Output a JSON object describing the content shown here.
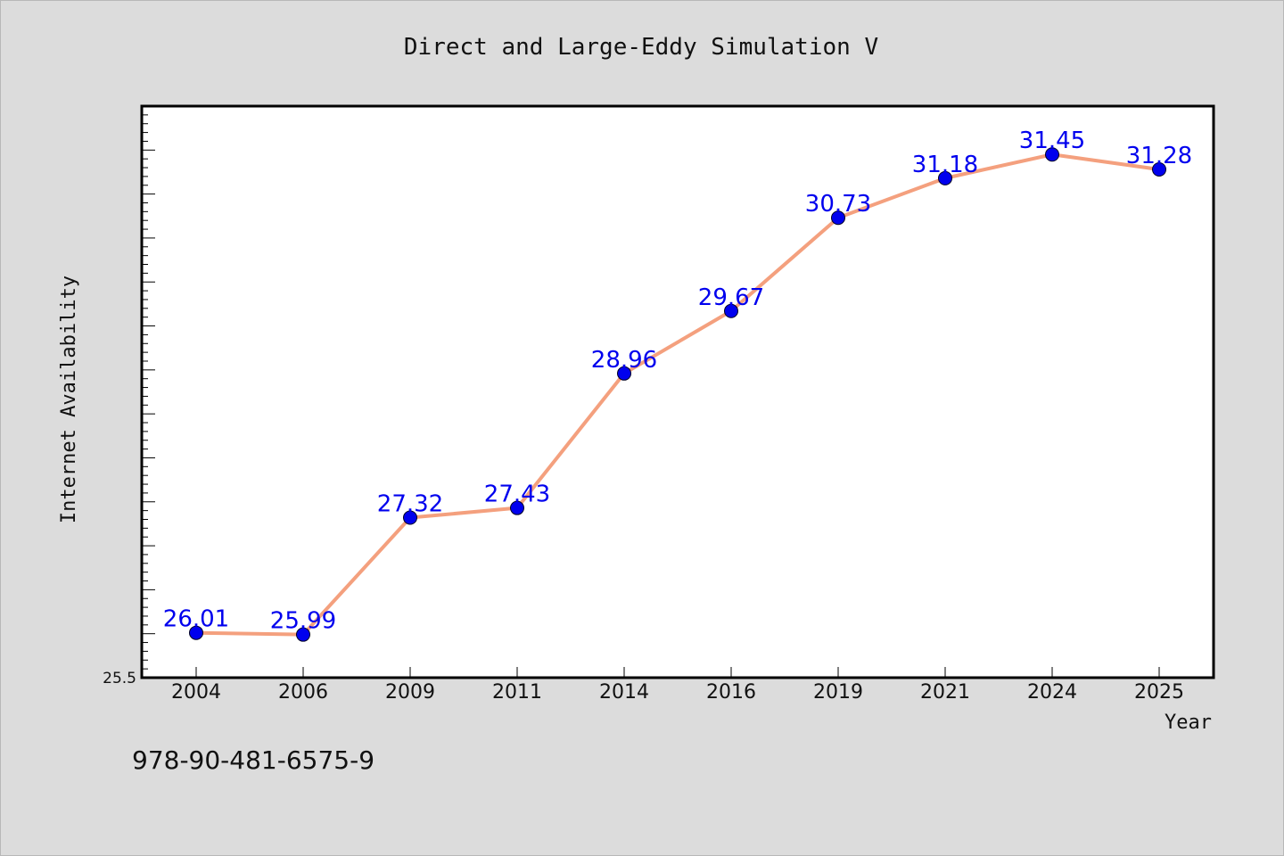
{
  "chart_data": {
    "type": "line",
    "title": "Direct and Large-Eddy Simulation V",
    "xlabel": "Year",
    "ylabel": "Internet Availability",
    "categories": [
      "2004",
      "2006",
      "2009",
      "2011",
      "2014",
      "2016",
      "2019",
      "2021",
      "2024",
      "2025"
    ],
    "series": [
      {
        "values": [
          26.01,
          25.99,
          27.32,
          27.43,
          28.96,
          29.67,
          30.73,
          31.18,
          31.45,
          31.28
        ],
        "labels": [
          "26.01",
          "25.99",
          "27.32",
          "27.43",
          "28.96",
          "29.67",
          "30.73",
          "31.18",
          "31.45",
          "31.28"
        ],
        "line_color": "#f4a07e",
        "marker_color": "#0000ee"
      }
    ],
    "ylim": [
      25.5,
      32.0
    ],
    "yticks_labeled": [
      "25.5"
    ],
    "grid": false,
    "legend": "none"
  },
  "footer": {
    "isbn": "978-90-481-6575-9"
  },
  "colors": {
    "background": "#dcdcdc",
    "plot_background": "#ffffff",
    "label_color": "#0000ee"
  }
}
